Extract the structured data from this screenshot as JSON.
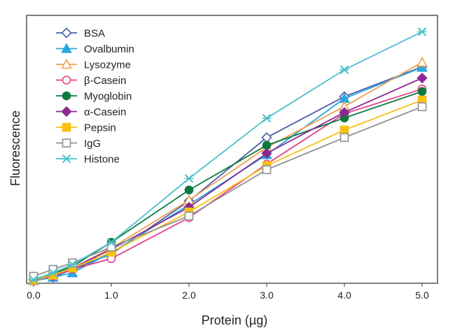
{
  "chart_data": {
    "type": "line",
    "title": "",
    "xlabel": "Protein (µg)",
    "ylabel": "Fluorescence",
    "xlim": [
      0,
      5
    ],
    "ylim": [
      0,
      100
    ],
    "x_ticks": [
      "0.0",
      "1.0",
      "2.0",
      "3.0",
      "4.0",
      "5.0"
    ],
    "y_ticks_shown": false,
    "grid": false,
    "legend_position": "top-left",
    "x": [
      0,
      0.25,
      0.5,
      1,
      2,
      3,
      4,
      5
    ],
    "series": [
      {
        "name": "BSA",
        "marker": "diamond-open",
        "color": "#4a5fa8",
        "values": [
          1.3,
          2.2,
          5.2,
          10.9,
          30.7,
          54.4,
          69.7,
          80.8
        ]
      },
      {
        "name": "Ovalbumin",
        "marker": "triangle-filled",
        "color": "#29a8e0",
        "values": [
          0.9,
          2.2,
          3.9,
          11.4,
          29.3,
          48.0,
          69.0,
          80.6
        ]
      },
      {
        "name": "Lysozyme",
        "marker": "triangle-open",
        "color": "#f0a050",
        "values": [
          0.9,
          3.0,
          5.7,
          13.1,
          31.0,
          50.7,
          66.0,
          82.5
        ]
      },
      {
        "name": "β-Casein",
        "marker": "circle-open",
        "color": "#e0408a",
        "values": [
          1.3,
          2.6,
          5.2,
          9.2,
          24.5,
          44.5,
          63.3,
          72.5
        ]
      },
      {
        "name": "Myoglobin",
        "marker": "circle-filled",
        "color": "#0a7a40",
        "values": [
          1.5,
          3.5,
          6.3,
          15.3,
          34.8,
          51.5,
          61.7,
          71.6
        ]
      },
      {
        "name": "α-Casein",
        "marker": "diamond-filled",
        "color": "#8a2a90",
        "values": [
          1.3,
          3.0,
          5.7,
          12.7,
          28.4,
          48.5,
          63.8,
          76.6
        ]
      },
      {
        "name": "Pepsin",
        "marker": "square-filled",
        "color": "#f8c010",
        "values": [
          1.3,
          3.0,
          5.7,
          11.6,
          26.6,
          43.9,
          57.2,
          68.4
        ]
      },
      {
        "name": "IgG",
        "marker": "square-open",
        "color": "#909090",
        "values": [
          2.6,
          5.2,
          7.6,
          13.5,
          25.1,
          42.4,
          54.4,
          65.9
        ]
      },
      {
        "name": "Histone",
        "marker": "x",
        "color": "#4cc0c8",
        "values": [
          1.3,
          3.9,
          7.0,
          15.3,
          39.1,
          61.6,
          79.7,
          93.9
        ]
      }
    ]
  }
}
